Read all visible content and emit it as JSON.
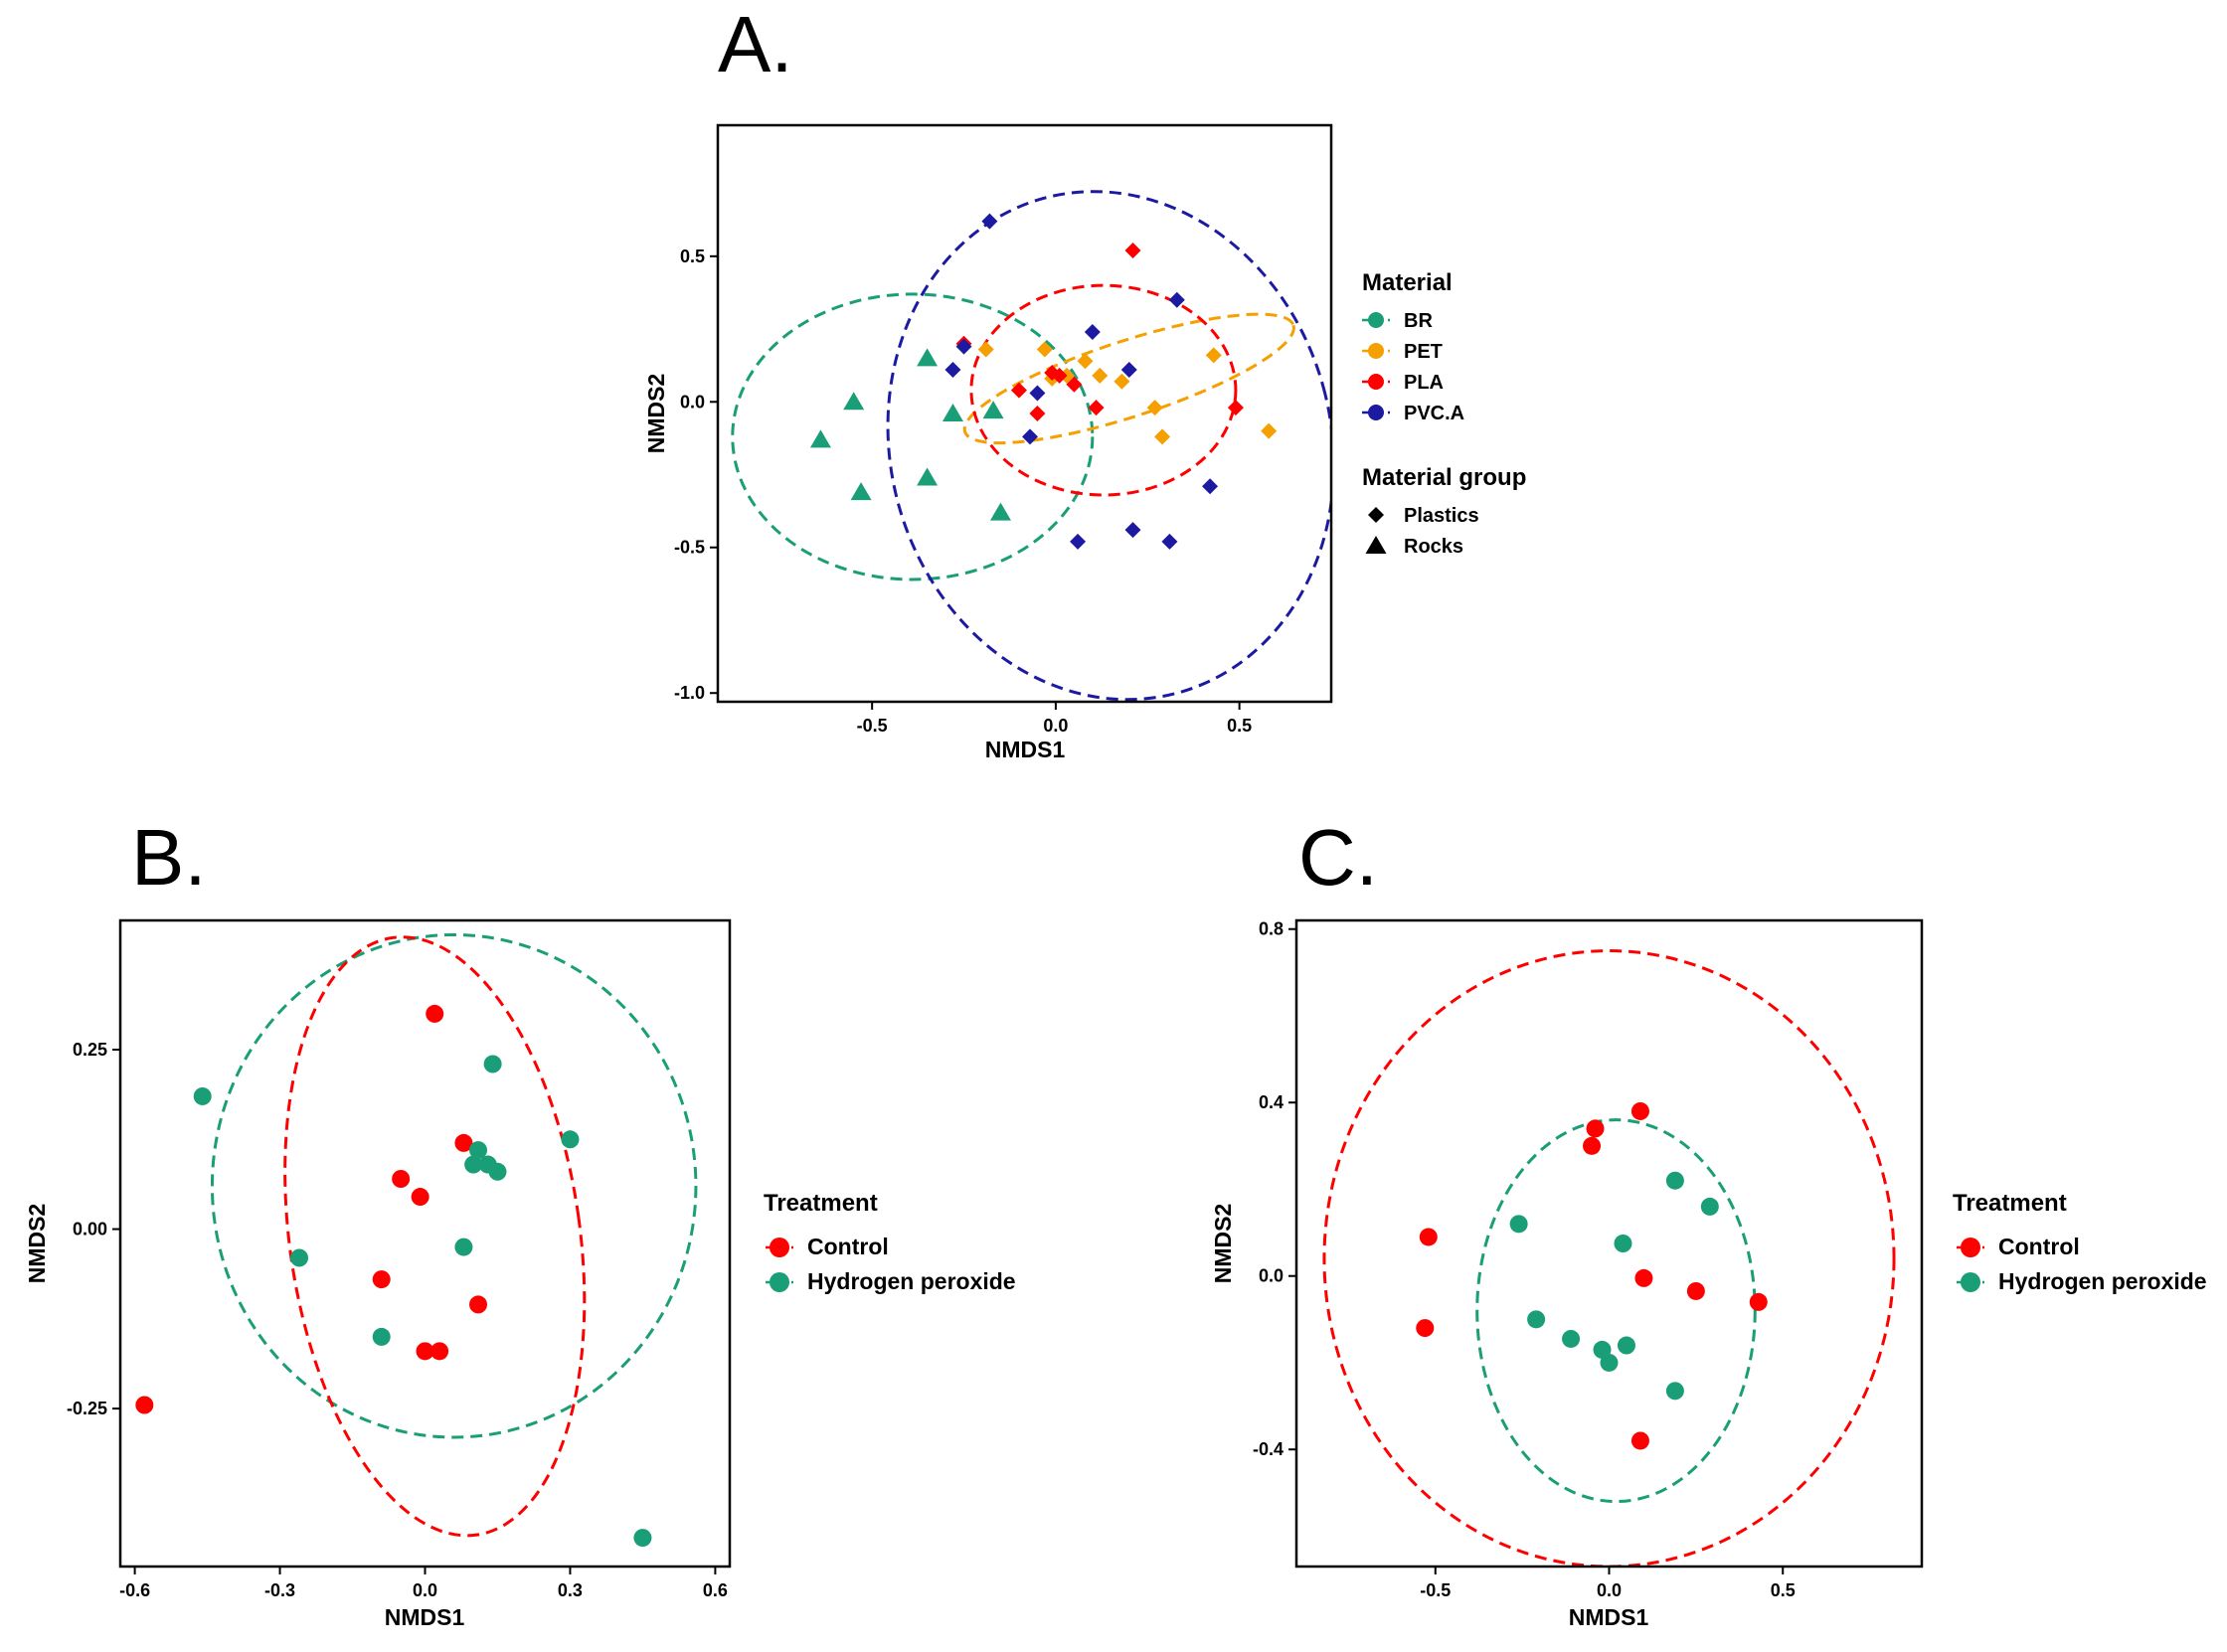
{
  "colors": {
    "BR": "#1a9e77",
    "PET": "#f5a000",
    "PLA": "#ff0000",
    "PVC.A": "#1c1aa0",
    "Control": "#ff0000",
    "Hydrogen peroxide": "#1a9e77",
    "black": "#000000"
  },
  "chart_data": [
    {
      "panel": "A.",
      "type": "scatter",
      "xlabel": "NMDS1",
      "ylabel": "NMDS2",
      "xlim": [
        -0.92,
        0.75
      ],
      "ylim": [
        -1.03,
        0.95
      ],
      "xticks": [
        -0.5,
        0.0,
        0.5
      ],
      "xtick_labels": [
        "-0.5",
        "0.0",
        "0.5"
      ],
      "yticks": [
        -1.0,
        -0.5,
        0.0,
        0.5
      ],
      "ytick_labels": [
        "-1.0",
        "-0.5",
        "0.0",
        "0.5"
      ],
      "legend_title": "Material",
      "legend": [
        "BR",
        "PET",
        "PLA",
        "PVC.A"
      ],
      "shape_legend_title": "Material group",
      "shape_legend": [
        {
          "label": "Plastics",
          "shape": "diamond"
        },
        {
          "label": "Rocks",
          "shape": "triangle"
        }
      ],
      "series": [
        {
          "name": "BR",
          "shape": "triangle",
          "points": [
            [
              -0.64,
              -0.13
            ],
            [
              -0.53,
              -0.31
            ],
            [
              -0.55,
              0.0
            ],
            [
              -0.35,
              0.15
            ],
            [
              -0.35,
              -0.26
            ],
            [
              -0.28,
              -0.04
            ],
            [
              -0.17,
              -0.03
            ],
            [
              -0.15,
              -0.38
            ]
          ]
        },
        {
          "name": "PET",
          "shape": "diamond",
          "points": [
            [
              -0.19,
              0.18
            ],
            [
              -0.03,
              0.18
            ],
            [
              -0.01,
              0.08
            ],
            [
              0.03,
              0.09
            ],
            [
              0.08,
              0.14
            ],
            [
              0.12,
              0.09
            ],
            [
              0.18,
              0.07
            ],
            [
              0.27,
              -0.02
            ],
            [
              0.29,
              -0.12
            ],
            [
              0.43,
              0.16
            ],
            [
              0.58,
              -0.1
            ]
          ]
        },
        {
          "name": "PLA",
          "shape": "diamond",
          "points": [
            [
              0.21,
              0.52
            ],
            [
              -0.25,
              0.2
            ],
            [
              -0.1,
              0.04
            ],
            [
              -0.05,
              -0.04
            ],
            [
              -0.01,
              0.1
            ],
            [
              0.01,
              0.09
            ],
            [
              0.05,
              0.06
            ],
            [
              0.11,
              -0.02
            ],
            [
              0.49,
              -0.02
            ]
          ]
        },
        {
          "name": "PVC.A",
          "shape": "diamond",
          "points": [
            [
              -0.18,
              0.62
            ],
            [
              0.33,
              0.35
            ],
            [
              -0.25,
              0.19
            ],
            [
              0.1,
              0.24
            ],
            [
              -0.28,
              0.11
            ],
            [
              0.2,
              0.11
            ],
            [
              -0.05,
              0.03
            ],
            [
              -0.07,
              -0.12
            ],
            [
              0.06,
              -0.48
            ],
            [
              0.21,
              -0.44
            ],
            [
              0.31,
              -0.48
            ],
            [
              0.42,
              -0.29
            ]
          ]
        }
      ],
      "ellipses": [
        {
          "group": "BR",
          "center": [
            -0.39,
            -0.12
          ],
          "radii": [
            0.49,
            0.49
          ],
          "angle": 0
        },
        {
          "group": "PET",
          "center": [
            0.2,
            0.08
          ],
          "radii": [
            0.47,
            0.13
          ],
          "angle": -18
        },
        {
          "group": "PLA",
          "center": [
            0.13,
            0.04
          ],
          "radii": [
            0.36,
            0.36
          ],
          "angle": 0
        },
        {
          "group": "PVC.A",
          "center": [
            0.15,
            -0.15
          ],
          "radii": [
            0.6,
            0.88
          ],
          "angle": -15
        }
      ]
    },
    {
      "panel": "B.",
      "type": "scatter",
      "xlabel": "NMDS1",
      "ylabel": "NMDS2",
      "xlim": [
        -0.63,
        0.63
      ],
      "ylim": [
        -0.47,
        0.43
      ],
      "xticks": [
        -0.6,
        -0.3,
        0.0,
        0.3,
        0.6
      ],
      "xtick_labels": [
        "-0.6",
        "-0.3",
        "0.0",
        "0.3",
        "0.6"
      ],
      "yticks": [
        -0.25,
        0.0,
        0.25
      ],
      "ytick_labels": [
        "-0.25",
        "0.00",
        "0.25"
      ],
      "legend_title": "Treatment",
      "legend": [
        "Control",
        "Hydrogen peroxide"
      ],
      "series": [
        {
          "name": "Control",
          "points": [
            [
              -0.58,
              -0.245
            ],
            [
              0.02,
              0.3
            ],
            [
              0.08,
              0.12
            ],
            [
              -0.05,
              0.07
            ],
            [
              -0.01,
              0.045
            ],
            [
              -0.09,
              -0.07
            ],
            [
              0.11,
              -0.105
            ],
            [
              0.0,
              -0.17
            ],
            [
              0.03,
              -0.17
            ]
          ]
        },
        {
          "name": "Hydrogen peroxide",
          "points": [
            [
              -0.46,
              0.185
            ],
            [
              0.14,
              0.23
            ],
            [
              0.3,
              0.125
            ],
            [
              0.11,
              0.11
            ],
            [
              0.1,
              0.09
            ],
            [
              0.13,
              0.09
            ],
            [
              0.15,
              0.08
            ],
            [
              -0.26,
              -0.04
            ],
            [
              0.08,
              -0.025
            ],
            [
              -0.09,
              -0.15
            ],
            [
              0.45,
              -0.43
            ]
          ]
        }
      ],
      "ellipses": [
        {
          "group": "Hydrogen peroxide",
          "center": [
            0.06,
            0.06
          ],
          "radii": [
            0.5,
            0.35
          ],
          "angle": 0
        },
        {
          "group": "Control",
          "center": [
            0.02,
            -0.01
          ],
          "radii": [
            0.3,
            0.42
          ],
          "angle": -8
        }
      ]
    },
    {
      "panel": "C.",
      "type": "scatter",
      "xlabel": "NMDS1",
      "ylabel": "NMDS2",
      "xlim": [
        -0.9,
        0.9
      ],
      "ylim": [
        -0.67,
        0.82
      ],
      "xticks": [
        -0.5,
        0.0,
        0.5
      ],
      "xtick_labels": [
        "-0.5",
        "0.0",
        "0.5"
      ],
      "yticks": [
        -0.4,
        0.0,
        0.4,
        0.8
      ],
      "ytick_labels": [
        "-0.4",
        "0.0",
        "0.4",
        "0.8"
      ],
      "legend_title": "Treatment",
      "legend": [
        "Control",
        "Hydrogen peroxide"
      ],
      "series": [
        {
          "name": "Control",
          "points": [
            [
              -0.52,
              0.09
            ],
            [
              -0.53,
              -0.12
            ],
            [
              -0.04,
              0.34
            ],
            [
              -0.05,
              0.3
            ],
            [
              0.09,
              0.38
            ],
            [
              0.1,
              -0.005
            ],
            [
              0.25,
              -0.035
            ],
            [
              0.43,
              -0.06
            ],
            [
              0.09,
              -0.38
            ]
          ]
        },
        {
          "name": "Hydrogen peroxide",
          "points": [
            [
              -0.26,
              0.12
            ],
            [
              0.19,
              0.22
            ],
            [
              0.29,
              0.16
            ],
            [
              0.04,
              0.075
            ],
            [
              -0.21,
              -0.1
            ],
            [
              -0.11,
              -0.145
            ],
            [
              -0.02,
              -0.17
            ],
            [
              0.05,
              -0.16
            ],
            [
              0.0,
              -0.2
            ],
            [
              0.19,
              -0.265
            ]
          ]
        }
      ],
      "ellipses": [
        {
          "group": "Control",
          "center": [
            0.0,
            0.04
          ],
          "radii": [
            0.82,
            0.71
          ],
          "angle": 0
        },
        {
          "group": "Hydrogen peroxide",
          "center": [
            0.02,
            -0.08
          ],
          "radii": [
            0.4,
            0.44
          ],
          "angle": 0
        }
      ]
    }
  ]
}
